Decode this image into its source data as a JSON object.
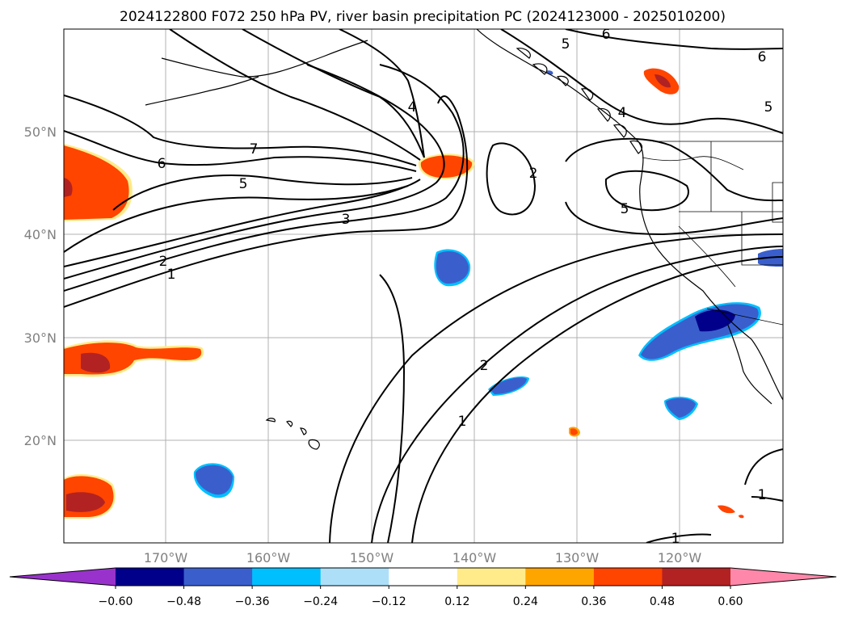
{
  "title": "2024122800 F072 250 hPa PV, river basin precipitation PC (2024123000 - 2025010200)",
  "axes": {
    "lat_labels": [
      "50°N",
      "40°N",
      "30°N",
      "20°N"
    ],
    "lon_labels": [
      "170°W",
      "160°W",
      "150°W",
      "140°W",
      "130°W",
      "120°W"
    ]
  },
  "contour_labels": [
    "7",
    "6",
    "5",
    "4",
    "3",
    "2",
    "1",
    "2",
    "1",
    "2",
    "5",
    "4",
    "5",
    "6",
    "6",
    "5",
    "1",
    "1"
  ],
  "colorbar": {
    "ticks": [
      "−0.60",
      "−0.48",
      "−0.36",
      "−0.24",
      "−0.12",
      "0.12",
      "0.24",
      "0.36",
      "0.48",
      "0.60"
    ],
    "colors": [
      "#9932CC",
      "#00008B",
      "#3A5FCD",
      "#00BFFF",
      "#ADE0F8",
      "#FFFFFF",
      "#FFEB8A",
      "#FFA500",
      "#FF4500",
      "#B22222",
      "#FF88AA"
    ]
  }
}
